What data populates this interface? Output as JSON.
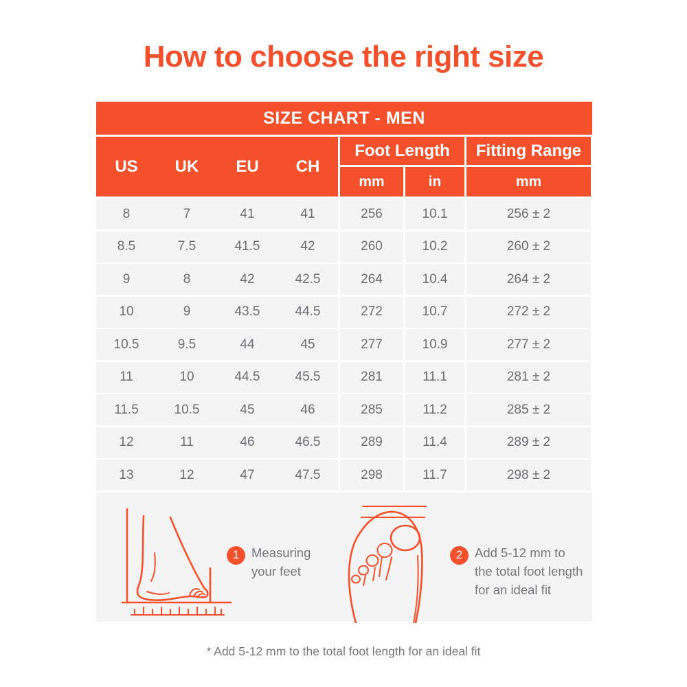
{
  "title": "How to choose the right size",
  "table": {
    "banner": "SIZE CHART - MEN",
    "size_columns": [
      "US",
      "UK",
      "EU",
      "CH"
    ],
    "foot_length_header": "Foot Length",
    "fitting_range_header": "Fitting Range",
    "units": {
      "foot_mm": "mm",
      "foot_in": "in",
      "fitting_mm": "mm"
    },
    "rows": [
      [
        "8",
        "7",
        "41",
        "41",
        "256",
        "10.1",
        "256 ± 2"
      ],
      [
        "8.5",
        "7.5",
        "41.5",
        "42",
        "260",
        "10.2",
        "260 ± 2"
      ],
      [
        "9",
        "8",
        "42",
        "42.5",
        "264",
        "10.4",
        "264 ± 2"
      ],
      [
        "10",
        "9",
        "43.5",
        "44.5",
        "272",
        "10.7",
        "272 ± 2"
      ],
      [
        "10.5",
        "9.5",
        "44",
        "45",
        "277",
        "10.9",
        "277 ± 2"
      ],
      [
        "11",
        "10",
        "44.5",
        "45.5",
        "281",
        "11.1",
        "281 ± 2"
      ],
      [
        "11.5",
        "10.5",
        "45",
        "46",
        "285",
        "11.2",
        "285 ± 2"
      ],
      [
        "12",
        "11",
        "46",
        "46.5",
        "289",
        "11.4",
        "289 ± 2"
      ],
      [
        "13",
        "12",
        "47",
        "47.5",
        "298",
        "11.7",
        "298 ± 2"
      ]
    ]
  },
  "steps": [
    {
      "number": "1",
      "text": "Measuring your feet"
    },
    {
      "number": "2",
      "text": "Add 5-12 mm to the total foot length for an ideal fit"
    }
  ],
  "footnote": "* Add 5-12 mm to the total foot length for an ideal fit",
  "colors": {
    "accent": "#F4502C",
    "row_bg": "#F4F4F5",
    "body_text": "#6E6E72",
    "note_text": "#77777B"
  }
}
